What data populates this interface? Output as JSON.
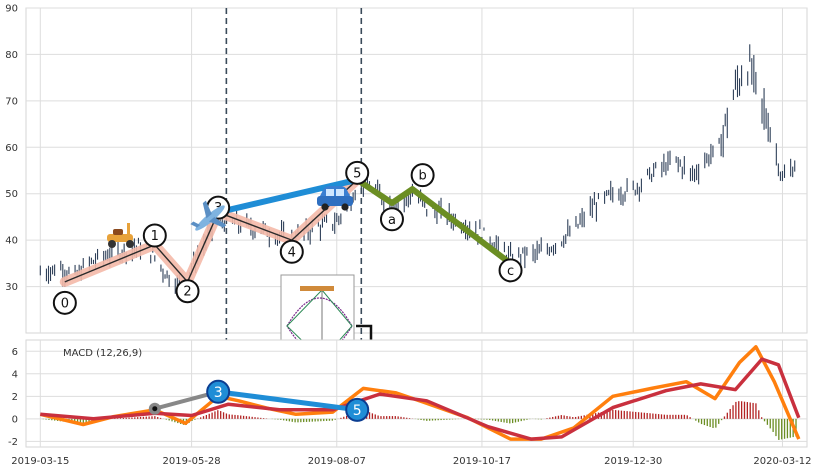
{
  "chart_data": [
    {
      "type": "candlestick",
      "panel": "price",
      "ylim": [
        20,
        90
      ],
      "yticks": [
        30,
        40,
        50,
        60,
        70,
        80,
        90
      ],
      "xlim": [
        "2019-03-08",
        "2020-03-24"
      ],
      "xticks": [
        "2019-03-15",
        "2019-05-28",
        "2019-08-07",
        "2019-10-17",
        "2019-12-30",
        "2020-03-12"
      ],
      "grid": true,
      "price_path": [
        [
          "2019-03-15",
          33
        ],
        [
          "2019-03-25",
          34
        ],
        [
          "2019-04-01",
          32
        ],
        [
          "2019-04-08",
          35
        ],
        [
          "2019-04-18",
          37
        ],
        [
          "2019-04-28",
          38
        ],
        [
          "2019-05-06",
          39
        ],
        [
          "2019-05-15",
          33
        ],
        [
          "2019-05-23",
          30
        ],
        [
          "2019-06-03",
          39
        ],
        [
          "2019-06-10",
          45
        ],
        [
          "2019-06-15",
          44
        ],
        [
          "2019-06-24",
          43
        ],
        [
          "2019-07-03",
          42
        ],
        [
          "2019-07-10",
          41
        ],
        [
          "2019-07-16",
          40
        ],
        [
          "2019-07-28",
          43
        ],
        [
          "2019-08-07",
          44
        ],
        [
          "2019-08-14",
          49
        ],
        [
          "2019-08-18",
          53
        ],
        [
          "2019-08-25",
          51
        ],
        [
          "2019-09-01",
          48
        ],
        [
          "2019-09-08",
          48
        ],
        [
          "2019-09-13",
          50
        ],
        [
          "2019-09-20",
          47
        ],
        [
          "2019-10-01",
          45
        ],
        [
          "2019-10-15",
          42
        ],
        [
          "2019-10-24",
          39
        ],
        [
          "2019-10-31",
          36
        ],
        [
          "2019-11-07",
          37
        ],
        [
          "2019-11-14",
          37
        ],
        [
          "2019-11-21",
          39
        ],
        [
          "2019-12-01",
          42
        ],
        [
          "2019-12-10",
          47
        ],
        [
          "2019-12-20",
          50
        ],
        [
          "2019-12-30",
          51
        ],
        [
          "2020-01-10",
          55
        ],
        [
          "2020-01-20",
          57
        ],
        [
          "2020-01-28",
          54
        ],
        [
          "2020-02-05",
          58
        ],
        [
          "2020-02-10",
          60
        ],
        [
          "2020-02-15",
          68
        ],
        [
          "2020-02-20",
          75
        ],
        [
          "2020-02-24",
          78
        ],
        [
          "2020-03-01",
          70
        ],
        [
          "2020-03-06",
          64
        ],
        [
          "2020-03-12",
          53
        ],
        [
          "2020-03-18",
          56
        ]
      ],
      "wave_points": [
        {
          "label": "0",
          "date": "2019-03-27",
          "value": 26.5
        },
        {
          "label": "1",
          "date": "2019-05-10",
          "value": 41
        },
        {
          "label": "2",
          "date": "2019-05-26",
          "value": 29
        },
        {
          "label": "3",
          "date": "2019-06-10",
          "value": 47
        },
        {
          "label": "4",
          "date": "2019-07-16",
          "value": 37.5
        },
        {
          "label": "5",
          "date": "2019-08-17",
          "value": 54.5
        },
        {
          "label": "a",
          "date": "2019-09-03",
          "value": 44.5
        },
        {
          "label": "b",
          "date": "2019-09-18",
          "value": 54
        },
        {
          "label": "c",
          "date": "2019-10-31",
          "value": 33.5
        }
      ],
      "impulse_path": [
        [
          "2019-03-27",
          31
        ],
        [
          "2019-05-10",
          39
        ],
        [
          "2019-05-26",
          31
        ],
        [
          "2019-06-10",
          46
        ],
        [
          "2019-07-16",
          40
        ],
        [
          "2019-08-17",
          53
        ]
      ],
      "corrective_path": [
        [
          "2019-08-17",
          53
        ],
        [
          "2019-09-03",
          48
        ],
        [
          "2019-09-13",
          51
        ],
        [
          "2019-10-31",
          35
        ]
      ],
      "divergence_line": [
        [
          "2019-06-10",
          46
        ],
        [
          "2019-08-17",
          53
        ]
      ],
      "vlines": [
        "2019-06-14",
        "2019-08-19"
      ],
      "icons": [
        "scooter-icon",
        "airplane-icon",
        "car-icon"
      ],
      "colors": {
        "candle": "#2e3f58",
        "impulse": "#f4b9a8",
        "impulse_core": "#2a2a2a",
        "corrective": "#6b8e23",
        "divergence": "#1f8dd6",
        "vline": "#3a4a5a"
      }
    },
    {
      "type": "line",
      "panel": "macd",
      "title": "MACD (12,26,9)",
      "ylim": [
        -2.5,
        7
      ],
      "yticks": [
        -2,
        0,
        2,
        4,
        6
      ],
      "series": [
        {
          "color": "#ff7f0e",
          "values": [
            [
              "2019-03-15",
              0.4
            ],
            [
              "2019-04-05",
              -0.5
            ],
            [
              "2019-04-20",
              0.2
            ],
            [
              "2019-05-10",
              0.8
            ],
            [
              "2019-05-25",
              -0.4
            ],
            [
              "2019-06-10",
              2.0
            ],
            [
              "2019-06-20",
              1.6
            ],
            [
              "2019-07-05",
              0.9
            ],
            [
              "2019-07-18",
              0.4
            ],
            [
              "2019-08-05",
              0.6
            ],
            [
              "2019-08-20",
              2.7
            ],
            [
              "2019-09-05",
              2.3
            ],
            [
              "2019-09-18",
              1.5
            ],
            [
              "2019-10-10",
              0.1
            ],
            [
              "2019-10-31",
              -1.8
            ],
            [
              "2019-11-15",
              -1.8
            ],
            [
              "2019-12-01",
              -0.8
            ],
            [
              "2019-12-20",
              2.0
            ],
            [
              "2020-01-08",
              2.7
            ],
            [
              "2020-01-25",
              3.3
            ],
            [
              "2020-02-08",
              1.8
            ],
            [
              "2020-02-20",
              5.0
            ],
            [
              "2020-02-28",
              6.4
            ],
            [
              "2020-03-08",
              3.3
            ],
            [
              "2020-03-20",
              -1.8
            ]
          ]
        },
        {
          "color": "#c9303e",
          "values": [
            [
              "2019-03-15",
              0.4
            ],
            [
              "2019-04-10",
              0.0
            ],
            [
              "2019-05-10",
              0.5
            ],
            [
              "2019-05-28",
              0.3
            ],
            [
              "2019-06-15",
              1.3
            ],
            [
              "2019-07-10",
              0.8
            ],
            [
              "2019-08-05",
              0.8
            ],
            [
              "2019-08-28",
              2.2
            ],
            [
              "2019-09-20",
              1.6
            ],
            [
              "2019-10-20",
              -0.7
            ],
            [
              "2019-11-10",
              -1.8
            ],
            [
              "2019-11-25",
              -1.6
            ],
            [
              "2019-12-20",
              1.0
            ],
            [
              "2020-01-15",
              2.5
            ],
            [
              "2020-02-01",
              3.1
            ],
            [
              "2020-02-18",
              2.6
            ],
            [
              "2020-03-02",
              5.3
            ],
            [
              "2020-03-10",
              4.8
            ],
            [
              "2020-03-20",
              0.1
            ]
          ]
        }
      ],
      "histogram_color_pos": "#b22222",
      "histogram_color_neg": "#6b8e23",
      "markers": [
        {
          "date": "2019-05-10",
          "value": 0.9,
          "color": "#888888",
          "label": ""
        },
        {
          "date": "2019-06-10",
          "value": 2.4,
          "color": "#1f8dd6",
          "label": "3"
        },
        {
          "date": "2019-08-17",
          "value": 0.8,
          "color": "#1f8dd6",
          "label": "5"
        }
      ]
    }
  ]
}
